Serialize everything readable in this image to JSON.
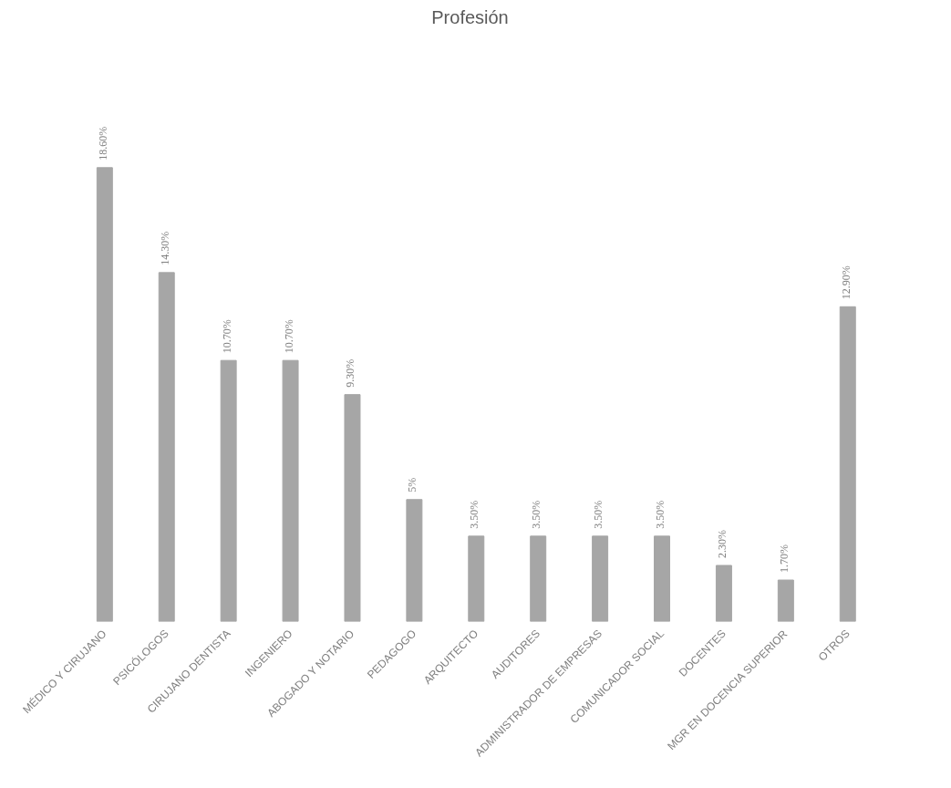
{
  "chart_data": {
    "type": "bar",
    "title": "Profesión",
    "categories": [
      "MÉDICO Y CIRUJANO",
      "PSICÓLOGOS",
      "CIRUJANO DENTISTA",
      "INGENIERO",
      "ABOGADO Y NOTARIO",
      "PEDAGOGO",
      "ARQUITECTO",
      "AUDITORES",
      "ADMINISTRADOR DE EMPRESAS",
      "COMUNICADOR SOCIAL",
      "DOCENTES",
      "MGR EN DOCENCIA SUPERIOR",
      "OTROS"
    ],
    "values": [
      18.6,
      14.3,
      10.7,
      10.7,
      9.3,
      5,
      3.5,
      3.5,
      3.5,
      3.5,
      2.3,
      1.7,
      12.9
    ],
    "value_labels": [
      "18.60%",
      "14.30%",
      "10.70%",
      "10.70%",
      "9.30%",
      "5%",
      "3.50%",
      "3.50%",
      "3.50%",
      "3.50%",
      "2.30%",
      "1.70%",
      "12.90%"
    ],
    "color": "#a6a6a6",
    "grid": false
  }
}
